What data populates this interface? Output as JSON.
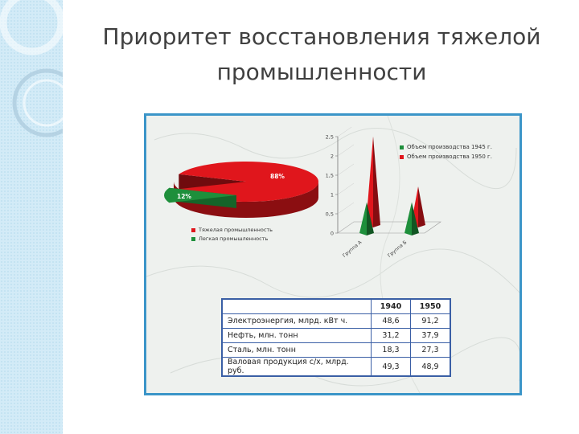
{
  "slide": {
    "title_line1": "Приоритет восстановления тяжелой",
    "title_line2": "промышленности"
  },
  "colors": {
    "red": "#e0161c",
    "green": "#1e8f3b",
    "frame": "#3b95c8",
    "table_border": "#3a5fa5",
    "side_band": "#d3ebf7"
  },
  "chart_data": [
    {
      "type": "pie",
      "slices": [
        {
          "label": "Тяжелая промышленность",
          "value": 88,
          "display": "88%",
          "color": "#e0161c"
        },
        {
          "label": "Легкая промышленность",
          "value": 12,
          "display": "12%",
          "color": "#1e8f3b"
        }
      ],
      "legend": "bottom"
    },
    {
      "type": "bar",
      "style": "cone-3d",
      "series": [
        {
          "name": "Объем производства 1945 г.",
          "values": [
            0.8,
            0.8
          ],
          "color": "#1e8f3b"
        },
        {
          "name": "Объем производства 1950 г.",
          "values": [
            2.3,
            1.0
          ],
          "color": "#e0161c"
        }
      ],
      "categories": [
        "Группа А",
        "Группа Б"
      ],
      "yticks": [
        "0",
        "0,5",
        "1",
        "1,5",
        "2",
        "2,5"
      ],
      "ylim": [
        0,
        2.5
      ],
      "legend": "top-right"
    },
    {
      "type": "table",
      "columns": [
        "",
        "1940",
        "1950"
      ],
      "rows": [
        {
          "label": "Электроэнергия, млрд. кВт ч.",
          "v1940": "48,6",
          "v1950": "91,2"
        },
        {
          "label": "Нефть, млн. тонн",
          "v1940": "31,2",
          "v1950": "37,9"
        },
        {
          "label": "Сталь, млн. тонн",
          "v1940": "18,3",
          "v1950": "27,3"
        },
        {
          "label": "Валовая продукция с/х, млрд. руб.",
          "v1940": "49,3",
          "v1950": "48,9"
        }
      ]
    }
  ]
}
